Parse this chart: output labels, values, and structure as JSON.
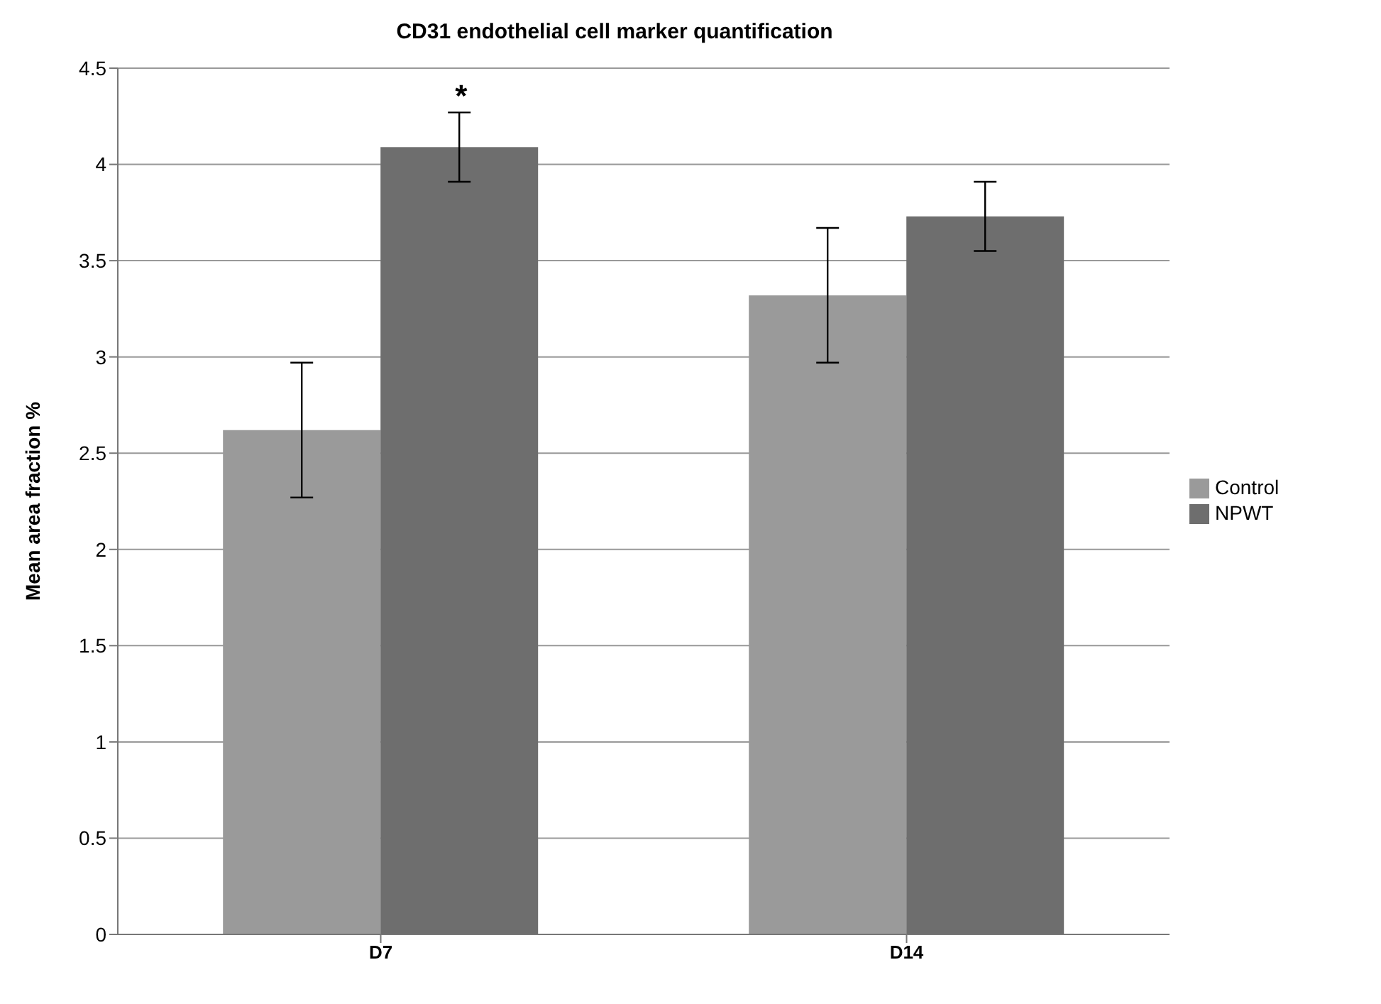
{
  "chart_data": {
    "type": "bar",
    "title": "CD31 endothelial cell marker quantification",
    "ylabel": "Mean area fraction %",
    "categories": [
      "D7",
      "D14"
    ],
    "series": [
      {
        "name": "Control",
        "color": "#9a9a9a",
        "values": [
          2.62,
          3.32
        ],
        "errors": [
          0.35,
          0.35
        ]
      },
      {
        "name": "NPWT",
        "color": "#6e6e6e",
        "values": [
          4.09,
          3.73
        ],
        "errors": [
          0.18,
          0.18
        ]
      }
    ],
    "ylim": [
      0,
      4.5
    ],
    "yticks": [
      0,
      0.5,
      1,
      1.5,
      2,
      2.5,
      3,
      3.5,
      4,
      4.5
    ],
    "grid": "y",
    "legend": "right",
    "annotations": [
      "*"
    ]
  }
}
